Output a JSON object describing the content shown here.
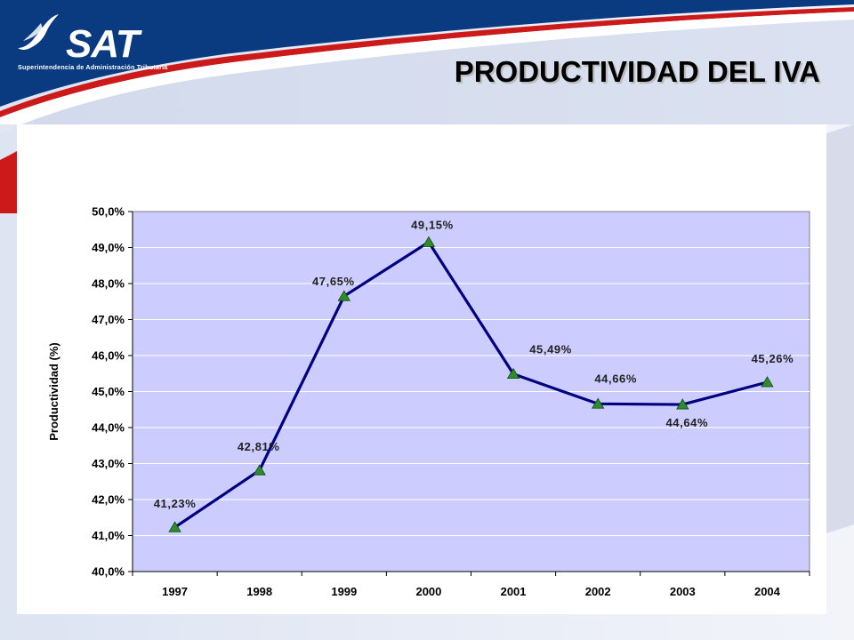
{
  "header": {
    "logo_text": "SAT",
    "logo_subtitle": "Superintendencia de Administración Tributaria",
    "title": "PRODUCTIVIDAD DEL IVA"
  },
  "colors": {
    "header_blue": "#0a3a80",
    "accent_red": "#cc1a1a",
    "plot_bg": "#ccccff",
    "line": "#000080",
    "marker": "#2e8b2e"
  },
  "chart_data": {
    "type": "line",
    "categories": [
      "1997",
      "1998",
      "1999",
      "2000",
      "2001",
      "2002",
      "2003",
      "2004"
    ],
    "series": [
      {
        "values": [
          41.23,
          42.81,
          47.65,
          49.15,
          45.49,
          44.66,
          44.64,
          45.26
        ]
      }
    ],
    "data_labels": [
      "41,23%",
      "42,81%",
      "47,65%",
      "49,15%",
      "45,49%",
      "44,66%",
      "44,64%",
      "45,26%"
    ],
    "y_tick_labels": [
      "40,0%",
      "41,0%",
      "42,0%",
      "43,0%",
      "44,0%",
      "45,0%",
      "46,0%",
      "47,0%",
      "48,0%",
      "49,0%",
      "50,0%"
    ],
    "ylabel": "Productividad (%)",
    "xlabel": "",
    "ylim": [
      40,
      50
    ],
    "y_major_step": 1,
    "grid": true,
    "legend": "none"
  }
}
